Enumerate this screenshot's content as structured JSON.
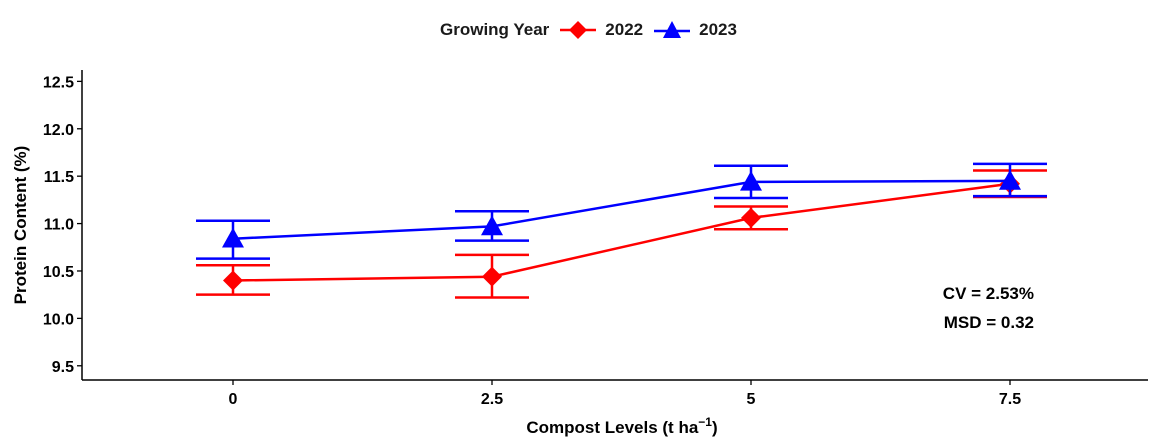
{
  "chart_data": {
    "type": "line",
    "xlabel": "Compost Levels (t ha",
    "xlabel_unit_exponent": "−1",
    "xlabel_close": ")",
    "ylabel": "Protein Content (%)",
    "categories": [
      "0",
      "2.5",
      "5",
      "7.5"
    ],
    "ylim": [
      9.35,
      12.62
    ],
    "yticks": [
      "9.5",
      "10.0",
      "10.5",
      "11.0",
      "11.5",
      "12.0",
      "12.5"
    ],
    "legend_title": "Growing Year",
    "legend_position": "top",
    "grid": false,
    "series": [
      {
        "name": "2022",
        "color": "#ff0000",
        "marker": "diamond",
        "values": [
          10.4,
          10.44,
          11.06,
          11.42
        ],
        "error_low": [
          10.25,
          10.22,
          10.94,
          11.28
        ],
        "error_high": [
          10.56,
          10.67,
          11.18,
          11.56
        ]
      },
      {
        "name": "2023",
        "color": "#0000ff",
        "marker": "triangle",
        "values": [
          10.84,
          10.97,
          11.44,
          11.45
        ],
        "error_low": [
          10.63,
          10.82,
          11.27,
          11.29
        ],
        "error_high": [
          11.03,
          11.13,
          11.61,
          11.63
        ]
      }
    ],
    "annotations": [
      "CV = 2.53%",
      "MSD = 0.32"
    ]
  }
}
